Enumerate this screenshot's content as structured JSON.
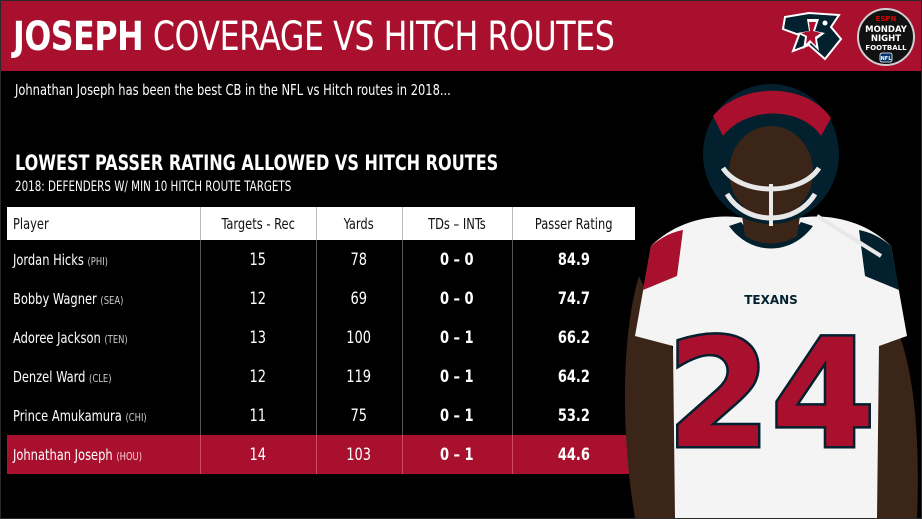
{
  "header": {
    "title_bold": "JOSEPH",
    "title_rest": "COVERAGE VS HITCH ROUTES"
  },
  "subtitle": "Johnathan Joseph has been the best CB in the NFL vs Hitch routes in 2018...",
  "section": {
    "title": "LOWEST PASSER RATING ALLOWED VS HITCH ROUTES",
    "subtitle": "2018: DEFENDERS W/ MIN 10 HITCH ROUTE TARGETS"
  },
  "logos": {
    "mnf_top": "ESPN",
    "mnf_line1": "MONDAY",
    "mnf_line2": "NIGHT",
    "mnf_line3": "FOOTBALL",
    "mnf_badge": "NFL"
  },
  "table": {
    "columns": [
      "Player",
      "Targets - Rec",
      "Yards",
      "TDs – INTs",
      "Passer Rating"
    ],
    "rows": [
      {
        "name": "Jordan Hicks",
        "team": "(PHI)",
        "targets": "15",
        "yards": "78",
        "tds_ints": "0 – 0",
        "rating": "84.9"
      },
      {
        "name": "Bobby Wagner",
        "team": "(SEA)",
        "targets": "12",
        "yards": "69",
        "tds_ints": "0 – 0",
        "rating": "74.7"
      },
      {
        "name": "Adoree Jackson",
        "team": "(TEN)",
        "targets": "13",
        "yards": "100",
        "tds_ints": "0 – 1",
        "rating": "66.2"
      },
      {
        "name": "Denzel Ward",
        "team": "(CLE)",
        "targets": "12",
        "yards": "119",
        "tds_ints": "0 – 1",
        "rating": "64.2"
      },
      {
        "name": "Prince Amukamura",
        "team": "(CHI)",
        "targets": "11",
        "yards": "75",
        "tds_ints": "0 – 1",
        "rating": "53.2"
      },
      {
        "name": "Johnathan Joseph",
        "team": "(HOU)",
        "targets": "14",
        "yards": "103",
        "tds_ints": "0 – 1",
        "rating": "44.6"
      }
    ]
  },
  "player_art": {
    "jersey_number": "24",
    "jersey_text": "TEXANS"
  },
  "colors": {
    "brand_red": "#a8102e",
    "navy": "#03202f"
  }
}
